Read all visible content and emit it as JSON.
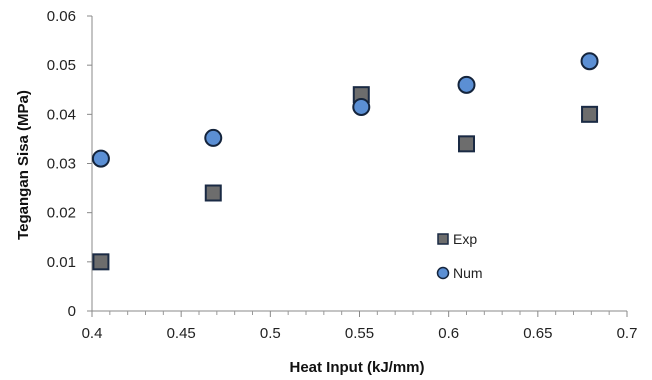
{
  "chart_data": {
    "type": "scatter",
    "xlabel": "Heat Input  (kJ/mm)",
    "ylabel": "Tegangan Sisa (MPa)",
    "xlim": [
      0.4,
      0.7
    ],
    "ylim": [
      0,
      0.06
    ],
    "x_ticks": [
      "0.4",
      "0.45",
      "0.5",
      "0.55",
      "0.6",
      "0.65",
      "0.7"
    ],
    "y_ticks": [
      "0",
      "0.01",
      "0.02",
      "0.03",
      "0.04",
      "0.05",
      "0.06"
    ],
    "x_tick_values": [
      0.4,
      0.45,
      0.5,
      0.55,
      0.6,
      0.65,
      0.7
    ],
    "y_tick_values": [
      0,
      0.01,
      0.02,
      0.03,
      0.04,
      0.05,
      0.06
    ],
    "grid": false,
    "legend_position": "right",
    "series": [
      {
        "name": "Exp",
        "marker": "square",
        "color": "#6d6d6d",
        "x": [
          0.405,
          0.468,
          0.551,
          0.61,
          0.679
        ],
        "y": [
          0.01,
          0.024,
          0.044,
          0.034,
          0.04
        ]
      },
      {
        "name": "Num",
        "marker": "circle",
        "color": "#5b8fd4",
        "x": [
          0.405,
          0.468,
          0.551,
          0.61,
          0.679
        ],
        "y": [
          0.031,
          0.0352,
          0.0415,
          0.046,
          0.0508
        ]
      }
    ]
  }
}
